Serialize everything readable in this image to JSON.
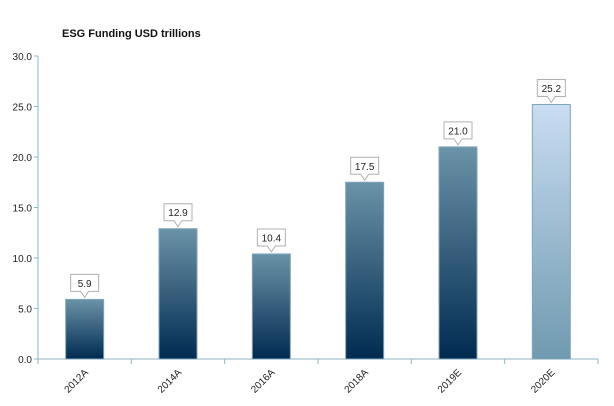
{
  "chart_data": {
    "type": "bar",
    "title": "ESG Funding USD trillions",
    "categories": [
      "2012A",
      "2014A",
      "2016A",
      "2018A",
      "2019E",
      "2020E"
    ],
    "values": [
      5.9,
      12.9,
      10.4,
      17.5,
      21.0,
      25.2
    ],
    "data_labels": [
      "5.9",
      "12.9",
      "10.4",
      "17.5",
      "21.0",
      "25.2"
    ],
    "estimate_flags": [
      false,
      false,
      false,
      false,
      false,
      true
    ],
    "xlabel": "",
    "ylabel": "",
    "ylim": [
      0,
      30
    ],
    "yticks": [
      "0.0",
      "5.0",
      "10.0",
      "15.0",
      "20.0",
      "25.0",
      "30.0"
    ],
    "grid": false,
    "legend": "none",
    "colors": {
      "bar_top": "#6a93a8",
      "bar_bottom": "#002a50",
      "highlight_top": "#c9dcf2",
      "highlight_bottom": "#6f9ab0",
      "axis": "#8fb4c6"
    }
  }
}
